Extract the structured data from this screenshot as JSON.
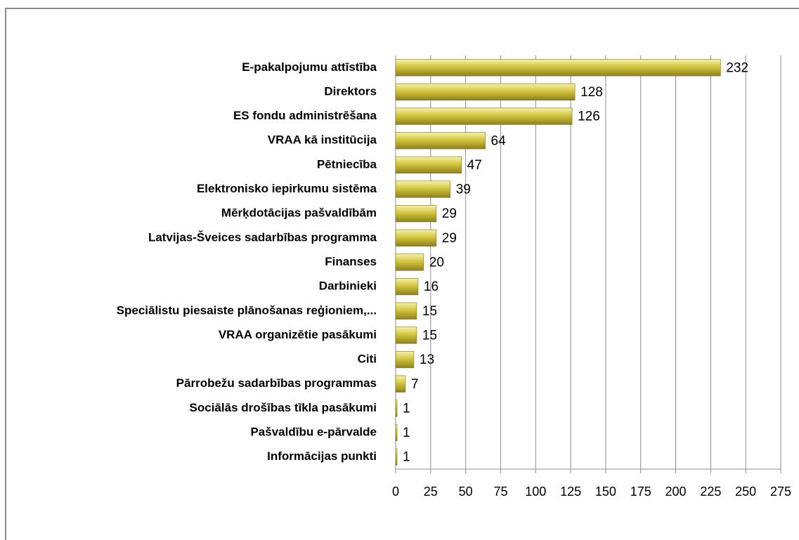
{
  "chart_data": {
    "type": "barh",
    "categories": [
      "E-pakalpojumu attīstība",
      "Direktors",
      "ES fondu administrēšana",
      "VRAA kā institūcija",
      "Pētniecība",
      "Elektronisko iepirkumu sistēma",
      "Mērķdotācijas pašvaldībām",
      "Latvijas-Šveices sadarbības programma",
      "Finanses",
      "Darbinieki",
      "Speciālistu piesaiste plānošanas reģioniem,...",
      "VRAA organizētie pasākumi",
      "Citi",
      "Pārrobežu sadarbības programmas",
      "Sociālās drošības tīkla pasākumi",
      "Pašvaldību e-pārvalde",
      "Informācijas punkti"
    ],
    "values": [
      232,
      128,
      126,
      64,
      47,
      39,
      29,
      29,
      20,
      16,
      15,
      15,
      13,
      7,
      1,
      1,
      1
    ],
    "color": "#d2c640",
    "xlim": [
      0,
      275
    ],
    "xticks": [
      0,
      25,
      50,
      75,
      100,
      125,
      150,
      175,
      200,
      225,
      250,
      275
    ],
    "grid": true
  }
}
